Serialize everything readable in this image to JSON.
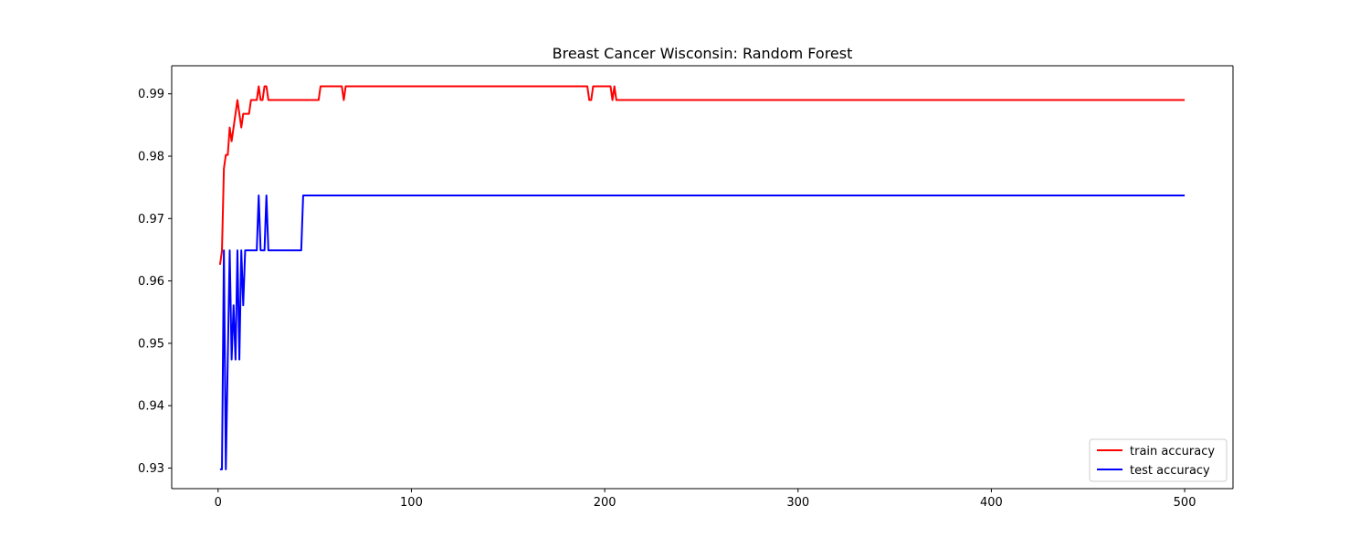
{
  "chart_data": {
    "type": "line",
    "title": "Breast Cancer Wisconsin: Random Forest",
    "xlabel": "",
    "ylabel": "",
    "xlim": [
      -24,
      525
    ],
    "ylim": [
      0.9267,
      0.9945
    ],
    "x_ticks": [
      0,
      100,
      200,
      300,
      400,
      500
    ],
    "y_ticks": [
      0.93,
      0.94,
      0.95,
      0.96,
      0.97,
      0.98,
      0.99
    ],
    "x_tick_labels": [
      "0",
      "100",
      "200",
      "300",
      "400",
      "500"
    ],
    "y_tick_labels": [
      "0.93",
      "0.94",
      "0.95",
      "0.96",
      "0.97",
      "0.98",
      "0.99"
    ],
    "grid": false,
    "legend_position": "bottom-right",
    "series": [
      {
        "name": "train accuracy",
        "color": "#ff0000",
        "x": [
          1,
          2,
          3,
          4,
          5,
          6,
          7,
          8,
          9,
          10,
          11,
          12,
          13,
          14,
          15,
          16,
          17,
          18,
          19,
          20,
          21,
          22,
          23,
          24,
          25,
          26,
          27,
          52,
          53,
          64,
          65,
          66,
          67,
          191,
          192,
          193,
          194,
          203,
          204,
          205,
          206,
          500
        ],
        "y": [
          0.9626,
          0.9648,
          0.978,
          0.9802,
          0.9802,
          0.9846,
          0.9824,
          0.9846,
          0.9868,
          0.989,
          0.9868,
          0.9846,
          0.9868,
          0.9868,
          0.9868,
          0.9868,
          0.989,
          0.989,
          0.989,
          0.989,
          0.9912,
          0.989,
          0.989,
          0.9912,
          0.9912,
          0.989,
          0.989,
          0.989,
          0.9912,
          0.9912,
          0.989,
          0.9912,
          0.9912,
          0.9912,
          0.989,
          0.989,
          0.9912,
          0.9912,
          0.989,
          0.9912,
          0.989,
          0.989
        ]
      },
      {
        "name": "test accuracy",
        "color": "#0000ff",
        "x": [
          1,
          2,
          3,
          4,
          5,
          6,
          7,
          8,
          9,
          10,
          11,
          12,
          13,
          14,
          15,
          16,
          17,
          18,
          19,
          20,
          21,
          22,
          23,
          24,
          25,
          26,
          27,
          43,
          44,
          500
        ],
        "y": [
          0.9298,
          0.9298,
          0.9649,
          0.9298,
          0.9474,
          0.9649,
          0.9474,
          0.9561,
          0.9474,
          0.9649,
          0.9474,
          0.9649,
          0.9561,
          0.9649,
          0.9649,
          0.9649,
          0.9649,
          0.9649,
          0.9649,
          0.9649,
          0.9737,
          0.9649,
          0.9649,
          0.9649,
          0.9737,
          0.9649,
          0.9649,
          0.9649,
          0.9737,
          0.9737
        ]
      }
    ]
  }
}
